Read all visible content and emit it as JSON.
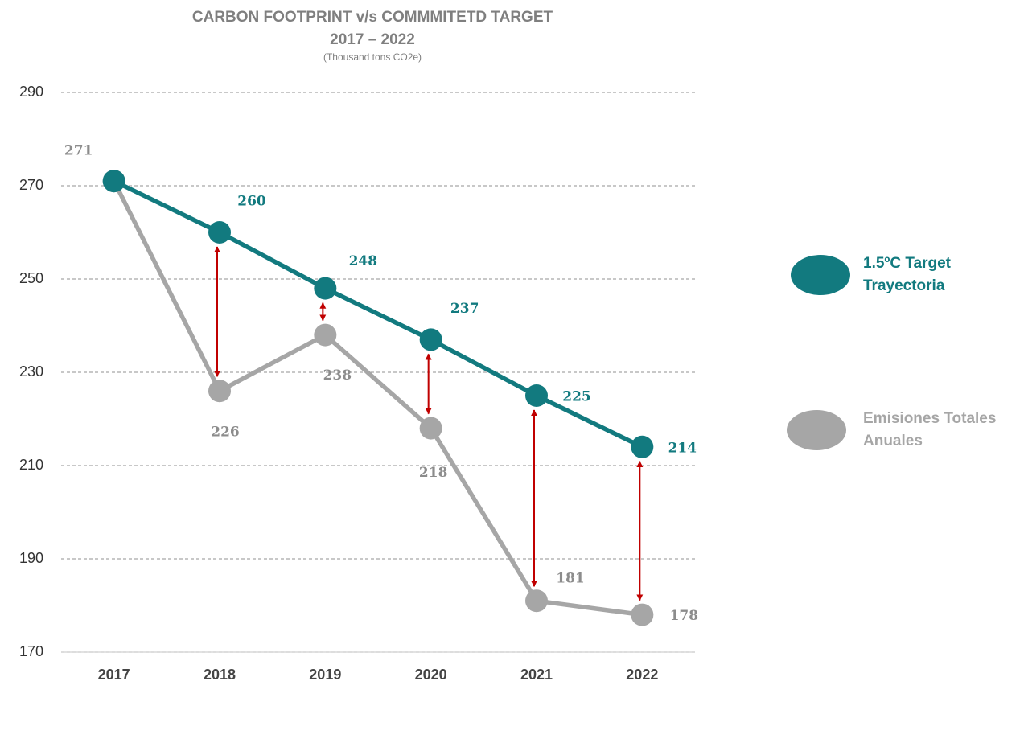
{
  "chart_data": {
    "type": "line",
    "title": "CARBON FOOTPRINT v/s COMMMITETD TARGET",
    "subtitle": "2017 – 2022",
    "unit_label": "(Thousand tons CO2e)",
    "categories": [
      "2017",
      "2018",
      "2019",
      "2020",
      "2021",
      "2022"
    ],
    "series": [
      {
        "name": "1.5ºC Target Trayectoria",
        "color": "#127a7f",
        "values": [
          271,
          260,
          248,
          237,
          225,
          214
        ],
        "value_labels": [
          null,
          "260",
          "248",
          "237",
          "225",
          "214"
        ]
      },
      {
        "name": "Emisiones Totales Anuales",
        "color": "#a6a6a6",
        "values": [
          271,
          226,
          238,
          218,
          181,
          178
        ],
        "value_labels": [
          "271",
          "226",
          "238",
          "218",
          "181",
          "178"
        ]
      }
    ],
    "ylim": [
      170,
      290
    ],
    "yticks": [
      170,
      190,
      210,
      230,
      250,
      270,
      290
    ],
    "grid": true,
    "legend": "right"
  }
}
